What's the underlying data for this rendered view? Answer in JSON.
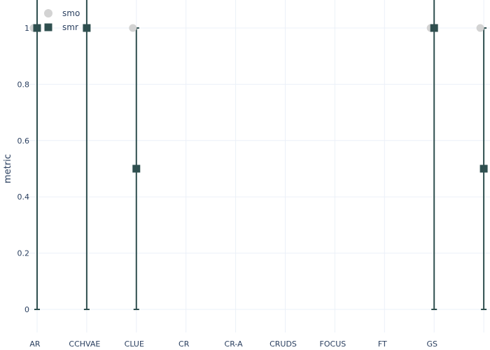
{
  "chart_data": {
    "type": "scatter",
    "title": "",
    "xlabel": "",
    "ylabel": "metric",
    "ylim": [
      -0.12,
      1.12
    ],
    "yticks": [
      0,
      0.2,
      0.4,
      0.6,
      0.8,
      1
    ],
    "ytick_labels": [
      "0",
      "0.2",
      "0.4",
      "0.6",
      "0.8",
      "1"
    ],
    "categories": [
      "AR",
      "CCHVAE",
      "CLUE",
      "CR",
      "CR-A",
      "CRUDS",
      "FOCUS",
      "FT",
      "GS",
      ""
    ],
    "grid": true,
    "legend_position": "top-left",
    "series": [
      {
        "name": "smo",
        "marker": "circle",
        "color": "#d3d3d3",
        "points": [
          {
            "x": "AR",
            "y": 1
          },
          {
            "x": "CLUE",
            "y": 1
          },
          {
            "x": "GS",
            "y": 1
          },
          {
            "x": "",
            "y": 1
          }
        ]
      },
      {
        "name": "smr",
        "marker": "square",
        "color": "#2f4f4f",
        "points": [
          {
            "x": "AR",
            "y": 1,
            "err_low": 0,
            "err_high": 2
          },
          {
            "x": "CCHVAE",
            "y": 1,
            "err_low": 0,
            "err_high": 2
          },
          {
            "x": "CLUE",
            "y": 0.5,
            "err_low": 0,
            "err_high": 1
          },
          {
            "x": "GS",
            "y": 1,
            "err_low": 0,
            "err_high": 2
          },
          {
            "x": "",
            "y": 0.5,
            "err_low": 0,
            "err_high": 1
          }
        ]
      }
    ]
  }
}
